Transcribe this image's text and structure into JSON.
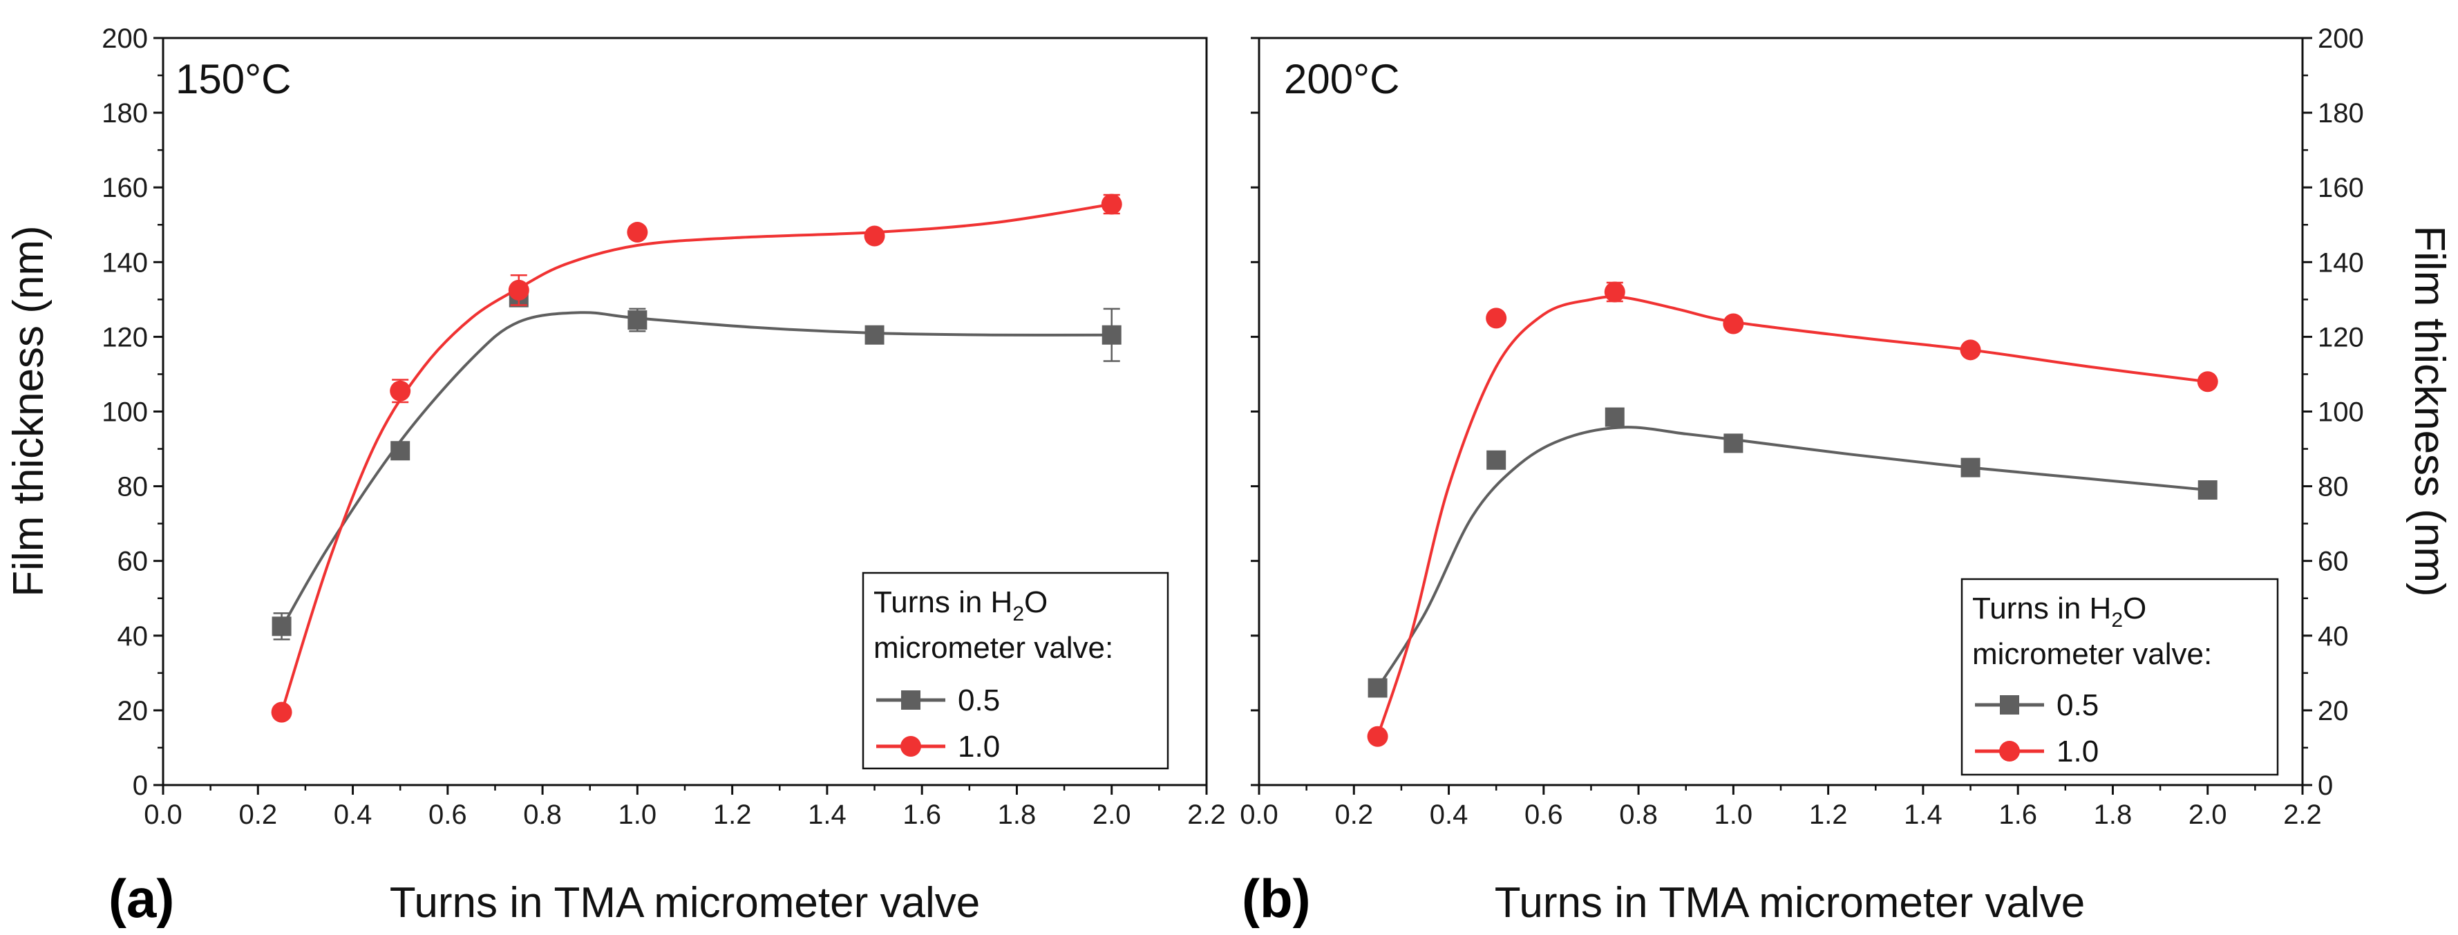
{
  "figure": {
    "y_axis_title": "Film thickness (nm)",
    "legend_title_prefix": "Turns in H",
    "legend_title_sub": "2",
    "legend_title_suffix": "O",
    "legend_title_line2": "micrometer valve:"
  },
  "colors": {
    "series_0_5": "#5f5f5f",
    "series_1_0": "#f03232"
  },
  "chart_data": [
    {
      "type": "line",
      "panel_label": "(a)",
      "temperature_label": "150°C",
      "xlabel": "Turns in TMA micrometer valve",
      "ylabel": "Film thickness (nm)",
      "xlim": [
        0.0,
        2.2
      ],
      "ylim": [
        0,
        200
      ],
      "xticks": [
        "0.0",
        "0.2",
        "0.4",
        "0.6",
        "0.8",
        "1.0",
        "1.2",
        "1.4",
        "1.6",
        "1.8",
        "2.0",
        "2.2"
      ],
      "yticks": [
        "0",
        "20",
        "40",
        "60",
        "80",
        "100",
        "120",
        "140",
        "160",
        "180",
        "200"
      ],
      "legend_position": "bottom-right",
      "series": [
        {
          "name": "0.5",
          "marker": "square",
          "color": "#5f5f5f",
          "x": [
            0.25,
            0.5,
            0.75,
            1.0,
            1.5,
            2.0
          ],
          "y": [
            42.5,
            89.5,
            130.5,
            124.5,
            120.5,
            120.5
          ],
          "err": [
            3.5,
            1.5,
            2.0,
            3.0,
            1.0,
            7.0
          ],
          "fit_x": [
            0.25,
            0.35,
            0.5,
            0.65,
            0.75,
            0.88,
            1.0,
            1.25,
            1.5,
            1.75,
            2.0
          ],
          "fit_y": [
            42,
            64,
            92,
            114,
            124,
            126.5,
            125,
            122.5,
            121,
            120.5,
            120.5
          ]
        },
        {
          "name": "1.0",
          "marker": "circle",
          "color": "#f03232",
          "x": [
            0.25,
            0.5,
            0.75,
            1.0,
            1.5,
            2.0
          ],
          "y": [
            19.5,
            105.5,
            132.5,
            148.0,
            147.0,
            155.5
          ],
          "err": [
            1.5,
            3.0,
            4.0,
            1.5,
            1.5,
            2.5
          ],
          "fit_x": [
            0.25,
            0.35,
            0.45,
            0.55,
            0.65,
            0.75,
            0.85,
            1.0,
            1.2,
            1.5,
            1.75,
            2.0
          ],
          "fit_y": [
            19.5,
            60,
            92,
            112,
            125,
            133,
            139.5,
            144.5,
            146.5,
            148,
            150.5,
            155.5
          ]
        }
      ]
    },
    {
      "type": "line",
      "panel_label": "(b)",
      "temperature_label": "200°C",
      "xlabel": "Turns in TMA micrometer valve",
      "ylabel": "Film thickness (nm)",
      "xlim": [
        0.0,
        2.2
      ],
      "ylim": [
        0,
        200
      ],
      "xticks": [
        "0.0",
        "0.2",
        "0.4",
        "0.6",
        "0.8",
        "1.0",
        "1.2",
        "1.4",
        "1.6",
        "1.8",
        "2.0",
        "2.2"
      ],
      "yticks": [
        "0",
        "20",
        "40",
        "60",
        "80",
        "100",
        "120",
        "140",
        "160",
        "180",
        "200"
      ],
      "legend_position": "bottom-right",
      "series": [
        {
          "name": "0.5",
          "marker": "square",
          "color": "#5f5f5f",
          "x": [
            0.25,
            0.5,
            0.75,
            1.0,
            1.5,
            2.0
          ],
          "y": [
            26.0,
            87.0,
            98.5,
            91.5,
            85.0,
            79.0
          ],
          "err": [
            0,
            0,
            0,
            0,
            0,
            0
          ],
          "fit_x": [
            0.25,
            0.35,
            0.45,
            0.55,
            0.65,
            0.77,
            0.9,
            1.0,
            1.25,
            1.5,
            1.75,
            2.0
          ],
          "fit_y": [
            26,
            46,
            72,
            86,
            93,
            95.8,
            94,
            92.5,
            88.5,
            85,
            82,
            79
          ]
        },
        {
          "name": "1.0",
          "marker": "circle",
          "color": "#f03232",
          "x": [
            0.25,
            0.5,
            0.75,
            1.0,
            1.5,
            2.0
          ],
          "y": [
            13.0,
            125.0,
            132.0,
            123.5,
            116.5,
            108.0
          ],
          "err": [
            0,
            0,
            2.5,
            0,
            0,
            0
          ],
          "fit_x": [
            0.25,
            0.32,
            0.4,
            0.5,
            0.6,
            0.7,
            0.77,
            0.88,
            1.0,
            1.25,
            1.5,
            1.75,
            2.0
          ],
          "fit_y": [
            13,
            40,
            80,
            112,
            126,
            130,
            130.5,
            127.5,
            124,
            120,
            116.5,
            112,
            108
          ]
        }
      ]
    }
  ]
}
